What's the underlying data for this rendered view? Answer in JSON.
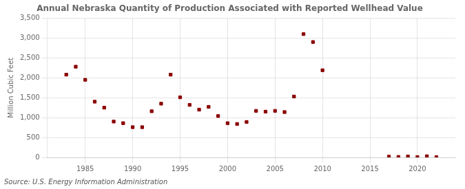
{
  "chart_data": {
    "type": "scatter",
    "title": "Annual Nebraska Quantity of Production Associated with Reported Wellhead Value",
    "ylabel": "Million Cubic Feet",
    "source": "Source: U.S. Energy Information Administration",
    "x": [
      1983,
      1984,
      1985,
      1986,
      1987,
      1988,
      1989,
      1990,
      1991,
      1992,
      1993,
      1994,
      1995,
      1996,
      1997,
      1998,
      1999,
      2000,
      2001,
      2002,
      2003,
      2004,
      2005,
      2006,
      2007,
      2008,
      2009,
      2010,
      2017,
      2018,
      2019,
      2020,
      2021,
      2022
    ],
    "values": [
      2080,
      2280,
      1950,
      1400,
      1250,
      900,
      860,
      760,
      760,
      1160,
      1350,
      2080,
      1510,
      1320,
      1200,
      1270,
      1040,
      860,
      840,
      890,
      1170,
      1150,
      1170,
      1140,
      1530,
      3100,
      2900,
      2190,
      18,
      12,
      22,
      8,
      30,
      5
    ],
    "color": "#8b0000",
    "marker": "square",
    "xlim": [
      1981,
      2024
    ],
    "xticks": [
      1985,
      1990,
      1995,
      2000,
      2005,
      2010,
      2015,
      2020
    ],
    "ylim": [
      0,
      3500
    ],
    "yticks": [
      0,
      500,
      {
        "value": 1000,
        "label": "1,000"
      },
      {
        "value": 1500,
        "label": "1,500"
      },
      {
        "value": 2000,
        "label": "2,000"
      },
      {
        "value": 2500,
        "label": "2,500"
      },
      {
        "value": 3000,
        "label": "3,000"
      },
      {
        "value": 3500,
        "label": "3,500"
      }
    ],
    "grid": true
  }
}
